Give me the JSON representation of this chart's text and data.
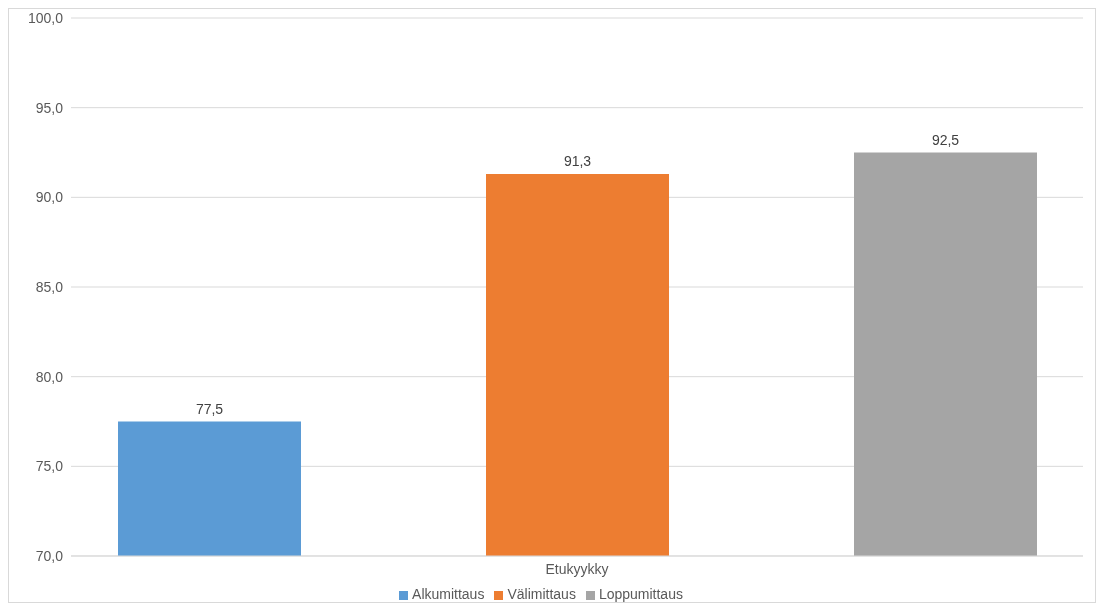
{
  "chart_data": {
    "type": "bar",
    "categories": [
      "Etukyykky"
    ],
    "series": [
      {
        "name": "Alkumittaus",
        "color": "#5b9bd5",
        "values": [
          77.5
        ],
        "value_labels": [
          "77,5"
        ]
      },
      {
        "name": "Välimittaus",
        "color": "#ed7d31",
        "values": [
          91.3
        ],
        "value_labels": [
          "91,3"
        ]
      },
      {
        "name": "Loppumittaus",
        "color": "#a5a5a5",
        "values": [
          92.5
        ],
        "value_labels": [
          "92,5"
        ]
      }
    ],
    "ylim": [
      70,
      100
    ],
    "yticks": [
      {
        "value": 70,
        "label": "70,0"
      },
      {
        "value": 75,
        "label": "75,0"
      },
      {
        "value": 80,
        "label": "80,0"
      },
      {
        "value": 85,
        "label": "85,0"
      },
      {
        "value": 90,
        "label": "90,0"
      },
      {
        "value": 95,
        "label": "95,0"
      },
      {
        "value": 100,
        "label": "100,0"
      }
    ],
    "grid": "y",
    "legend": "bottom"
  }
}
